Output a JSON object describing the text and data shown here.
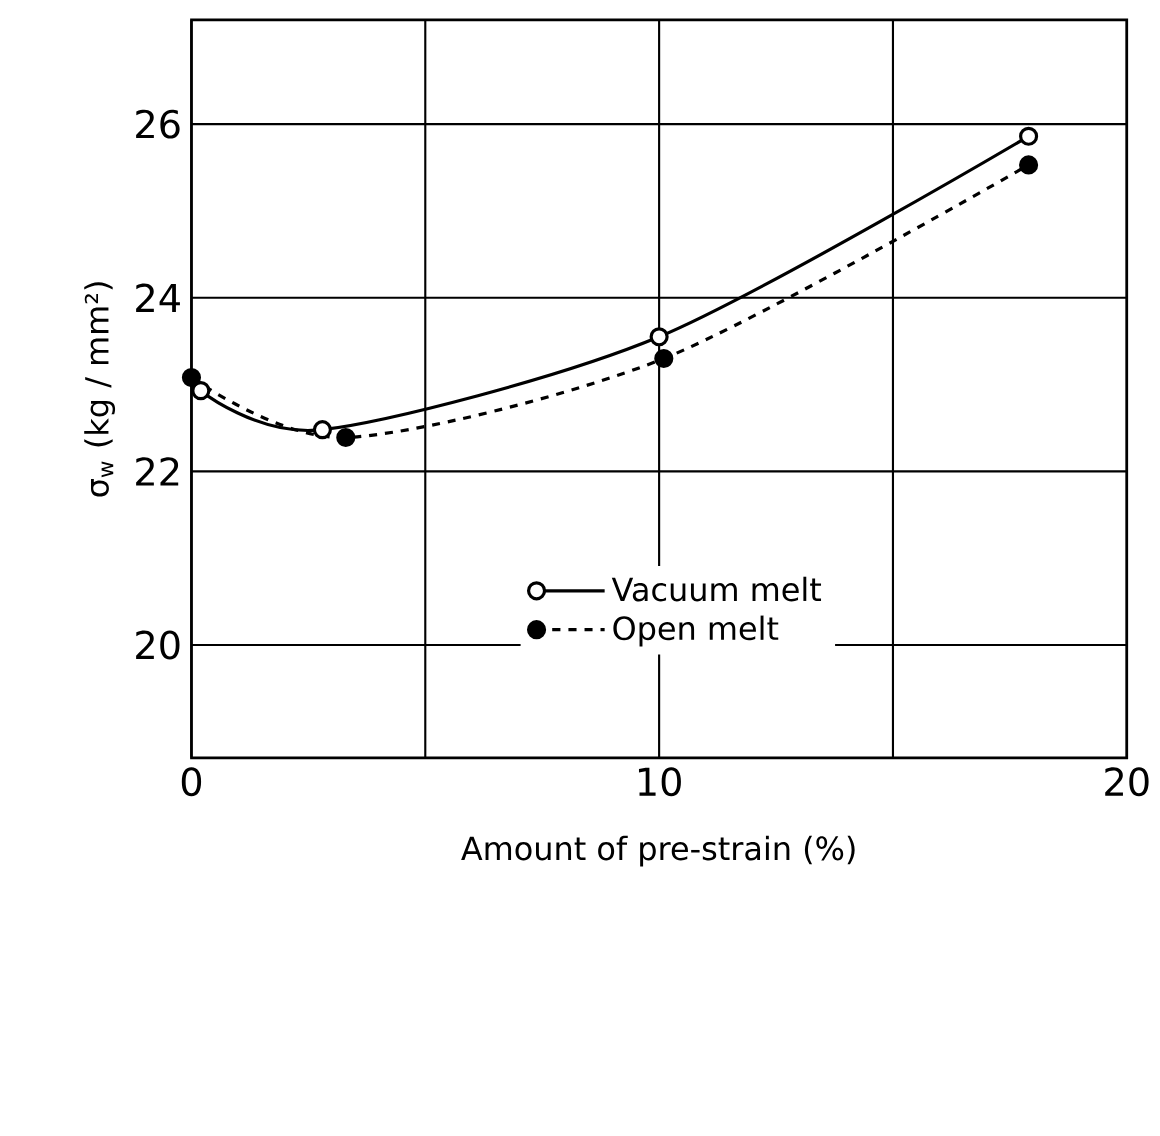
{
  "chart_data": {
    "type": "line",
    "xlabel": "Amount of pre-strain  (%)",
    "ylabel": "σ$_{w}$  (kg / mm²)",
    "xlim": [
      0,
      20
    ],
    "xticks": [
      0,
      {
        "value": 5,
        "label": null
      },
      10,
      {
        "value": 15,
        "label": null
      },
      20
    ],
    "ylim": [
      18.7,
      27.2
    ],
    "yticks": [
      20,
      22,
      24,
      26
    ],
    "grid": true,
    "legend": "bottom",
    "series": [
      {
        "name": "Vacuum melt",
        "color": "#000000",
        "marker": "circle",
        "line_style": "solid",
        "x": [
          0.2,
          2.8,
          10.0,
          17.9
        ],
        "values": [
          22.93,
          22.48,
          23.55,
          25.86
        ]
      },
      {
        "name": "Open melt",
        "color": "#000000",
        "marker": "circle",
        "line_style": "dashed",
        "x": [
          0,
          3.3,
          10.1,
          17.9
        ],
        "values": [
          23.08,
          22.39,
          23.3,
          25.53
        ]
      }
    ]
  }
}
